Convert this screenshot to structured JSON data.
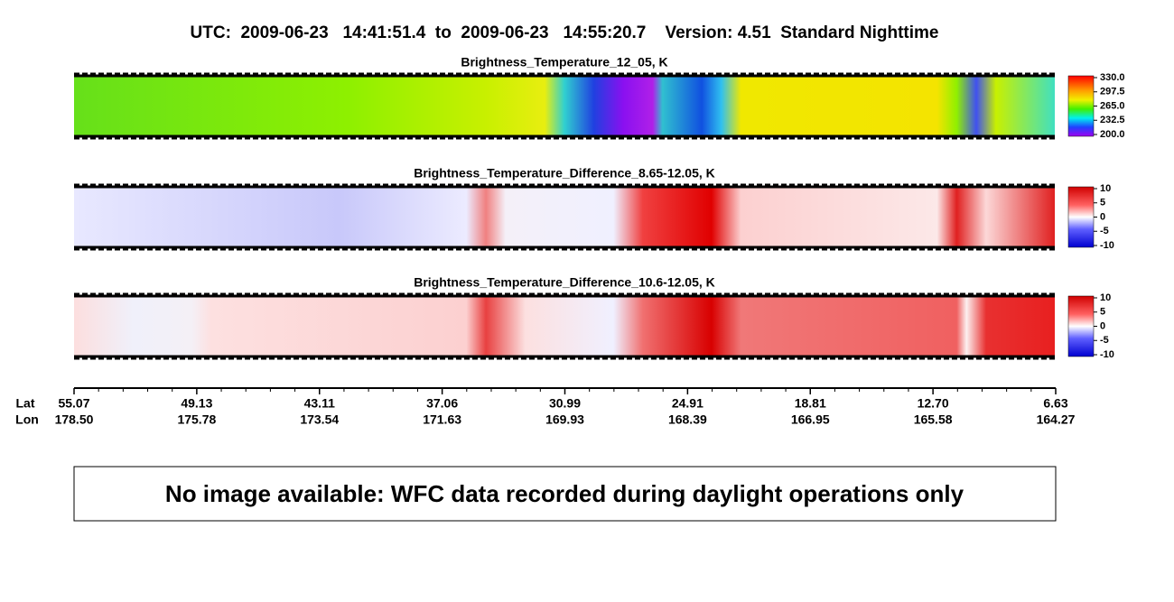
{
  "header": {
    "title": "UTC:  2009-06-23   14:41:51.4  to  2009-06-23   14:55:20.7    Version: 4.51  Standard Nighttime"
  },
  "panels": [
    {
      "title": "Brightness_Temperature_12_05, K",
      "colorbar_labels": [
        "330.0",
        "297.5",
        "265.0",
        "232.5",
        "200.0"
      ]
    },
    {
      "title": "Brightness_Temperature_Difference_8.65-12.05, K",
      "colorbar_labels": [
        "10",
        "5",
        "0",
        "-5",
        "-10"
      ]
    },
    {
      "title": "Brightness_Temperature_Difference_10.6-12.05, K",
      "colorbar_labels": [
        "10",
        "5",
        "0",
        "-5",
        "-10"
      ]
    }
  ],
  "axis": {
    "row_labels": [
      "Lat",
      "Lon"
    ],
    "ticks": [
      {
        "lat": "55.07",
        "lon": "178.50"
      },
      {
        "lat": "49.13",
        "lon": "175.78"
      },
      {
        "lat": "43.11",
        "lon": "173.54"
      },
      {
        "lat": "37.06",
        "lon": "171.63"
      },
      {
        "lat": "30.99",
        "lon": "169.93"
      },
      {
        "lat": "24.91",
        "lon": "168.39"
      },
      {
        "lat": "18.81",
        "lon": "166.95"
      },
      {
        "lat": "12.70",
        "lon": "165.58"
      },
      {
        "lat": "6.63",
        "lon": "164.27"
      }
    ]
  },
  "notice": "No image available: WFC data recorded during daylight operations only"
}
